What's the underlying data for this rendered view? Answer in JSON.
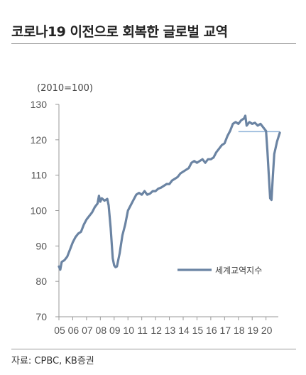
{
  "header": {
    "title": "코로나19 이전으로 회복한 글로벌 교역"
  },
  "footer": {
    "source": "자료: CPBC, KB증권"
  },
  "colors": {
    "series": "#6b84a3",
    "reference_line": "#8fb3d9",
    "axis": "#999999",
    "rule": "#9a9a9a"
  },
  "chart_data": {
    "type": "line",
    "unit_label": "(2010=100)",
    "ylim": [
      70,
      130
    ],
    "yticks": [
      "130",
      "120",
      "110",
      "100",
      "90",
      "80",
      "70"
    ],
    "xlim": [
      2005,
      2021.2
    ],
    "xticks": [
      {
        "year": 2005,
        "label": "05"
      },
      {
        "year": 2006,
        "label": "06"
      },
      {
        "year": 2007,
        "label": "07"
      },
      {
        "year": 2008,
        "label": "08"
      },
      {
        "year": 2009,
        "label": "09"
      },
      {
        "year": 2010,
        "label": "10"
      },
      {
        "year": 2011,
        "label": "11"
      },
      {
        "year": 2012,
        "label": "12"
      },
      {
        "year": 2013,
        "label": "13"
      },
      {
        "year": 2014,
        "label": "14"
      },
      {
        "year": 2015,
        "label": "15"
      },
      {
        "year": 2016,
        "label": "16"
      },
      {
        "year": 2017,
        "label": "17"
      },
      {
        "year": 2018,
        "label": "18"
      },
      {
        "year": 2019,
        "label": "19"
      },
      {
        "year": 2020,
        "label": "20"
      }
    ],
    "legend": "top-right",
    "grid": false,
    "reference_line": {
      "y": 122.3,
      "x_start": 2018.0,
      "x_end": 2021.0
    },
    "series": [
      {
        "name": "세계교역지수",
        "points": [
          [
            2005.0,
            84.2
          ],
          [
            2005.1,
            83.3
          ],
          [
            2005.2,
            85.5
          ],
          [
            2005.4,
            86.0
          ],
          [
            2005.6,
            87.0
          ],
          [
            2005.8,
            89.0
          ],
          [
            2006.0,
            91.0
          ],
          [
            2006.2,
            92.5
          ],
          [
            2006.4,
            93.5
          ],
          [
            2006.6,
            94.0
          ],
          [
            2006.8,
            96.0
          ],
          [
            2007.0,
            97.5
          ],
          [
            2007.2,
            98.5
          ],
          [
            2007.4,
            99.5
          ],
          [
            2007.6,
            101.0
          ],
          [
            2007.8,
            102.0
          ],
          [
            2007.9,
            104.2
          ],
          [
            2008.0,
            102.5
          ],
          [
            2008.1,
            103.5
          ],
          [
            2008.3,
            102.8
          ],
          [
            2008.5,
            103.3
          ],
          [
            2008.6,
            101.5
          ],
          [
            2008.75,
            95.0
          ],
          [
            2008.9,
            86.5
          ],
          [
            2009.0,
            84.5
          ],
          [
            2009.1,
            84.0
          ],
          [
            2009.2,
            84.2
          ],
          [
            2009.4,
            88.0
          ],
          [
            2009.6,
            93.0
          ],
          [
            2009.8,
            96.0
          ],
          [
            2010.0,
            100.0
          ],
          [
            2010.2,
            101.5
          ],
          [
            2010.4,
            103.0
          ],
          [
            2010.6,
            104.5
          ],
          [
            2010.8,
            105.0
          ],
          [
            2011.0,
            104.5
          ],
          [
            2011.2,
            105.5
          ],
          [
            2011.4,
            104.5
          ],
          [
            2011.6,
            104.8
          ],
          [
            2011.8,
            105.5
          ],
          [
            2012.0,
            105.5
          ],
          [
            2012.2,
            106.2
          ],
          [
            2012.4,
            106.5
          ],
          [
            2012.6,
            107.0
          ],
          [
            2012.8,
            107.5
          ],
          [
            2013.0,
            107.5
          ],
          [
            2013.2,
            108.5
          ],
          [
            2013.4,
            109.0
          ],
          [
            2013.6,
            109.5
          ],
          [
            2013.8,
            110.5
          ],
          [
            2014.0,
            111.0
          ],
          [
            2014.2,
            111.5
          ],
          [
            2014.4,
            112.0
          ],
          [
            2014.6,
            113.5
          ],
          [
            2014.8,
            114.0
          ],
          [
            2015.0,
            113.5
          ],
          [
            2015.2,
            114.0
          ],
          [
            2015.4,
            114.5
          ],
          [
            2015.6,
            113.5
          ],
          [
            2015.8,
            114.5
          ],
          [
            2016.0,
            114.5
          ],
          [
            2016.2,
            115.0
          ],
          [
            2016.4,
            116.5
          ],
          [
            2016.6,
            117.5
          ],
          [
            2016.8,
            118.5
          ],
          [
            2017.0,
            119.0
          ],
          [
            2017.2,
            121.0
          ],
          [
            2017.4,
            122.5
          ],
          [
            2017.6,
            124.5
          ],
          [
            2017.8,
            125.0
          ],
          [
            2018.0,
            124.5
          ],
          [
            2018.2,
            125.5
          ],
          [
            2018.4,
            126.0
          ],
          [
            2018.5,
            126.8
          ],
          [
            2018.6,
            124.0
          ],
          [
            2018.8,
            125.0
          ],
          [
            2019.0,
            124.5
          ],
          [
            2019.2,
            124.8
          ],
          [
            2019.4,
            124.0
          ],
          [
            2019.6,
            124.5
          ],
          [
            2019.8,
            123.5
          ],
          [
            2020.0,
            122.5
          ],
          [
            2020.1,
            117.0
          ],
          [
            2020.2,
            110.0
          ],
          [
            2020.3,
            103.5
          ],
          [
            2020.4,
            103.0
          ],
          [
            2020.5,
            110.0
          ],
          [
            2020.6,
            116.0
          ],
          [
            2020.8,
            119.5
          ],
          [
            2021.0,
            122.0
          ]
        ]
      }
    ]
  }
}
